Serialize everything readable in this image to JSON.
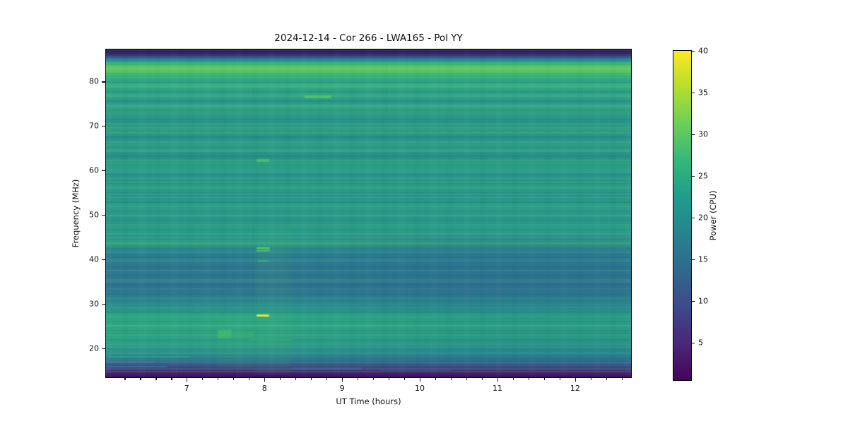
{
  "chart_data": {
    "type": "heatmap",
    "title": "2024-12-14 - Cor 266 - LWA165 - Pol YY",
    "xlabel": "UT Time (hours)",
    "ylabel": "Frequency (MHz)",
    "colorbar_label": "Power (CPU)",
    "colormap": "viridis",
    "grid": false,
    "x_range": [
      5.96,
      12.72
    ],
    "y_range": [
      13.5,
      87.2
    ],
    "color_range": [
      0.5,
      40
    ],
    "x_ticks": [
      7,
      8,
      9,
      10,
      11,
      12
    ],
    "x_minor_step": 0.2,
    "y_ticks": [
      20,
      30,
      40,
      50,
      60,
      70,
      80
    ],
    "colorbar_ticks": [
      5,
      10,
      15,
      20,
      25,
      30,
      35,
      40
    ],
    "freq_profile": {
      "description": "approximate mid-observation power (CPU) versus frequency (MHz)",
      "freqs": [
        87,
        85,
        83.5,
        82,
        80,
        78,
        76,
        74,
        72,
        70,
        68,
        66,
        64,
        62,
        60,
        58,
        56,
        54,
        52,
        50,
        48,
        46,
        45,
        44,
        42,
        40,
        38,
        36,
        34,
        32,
        30,
        28,
        27,
        26,
        24,
        22,
        20,
        18,
        17,
        16,
        15,
        14
      ],
      "power": [
        3,
        12,
        25,
        32,
        28,
        26,
        26,
        25,
        26,
        25,
        26,
        25,
        26,
        27,
        25,
        24,
        24,
        25,
        24,
        25,
        26,
        27,
        26,
        21,
        19,
        18,
        18,
        17,
        17,
        18,
        19,
        21,
        25,
        25,
        26,
        25,
        24,
        21,
        17,
        12,
        7,
        3
      ]
    },
    "time_structure_notes": [
      "28-45 MHz band darkens toward later times (~15-17 CPU after 10 UT)",
      "17-27 MHz band greener/brighter before ~9 UT",
      "dark band edges above ~85 MHz and below ~15 MHz",
      "bright green RFI band near 81-83 MHz for all times"
    ],
    "features": [
      {
        "name": "burst-27MHz-yellow",
        "t": [
          7.9,
          8.06
        ],
        "f": [
          27.1,
          27.6
        ],
        "power": 40,
        "color": "#f2e431",
        "opacity": 1,
        "blur": 0.4
      },
      {
        "name": "burst-42MHz-upper",
        "t": [
          7.9,
          8.07
        ],
        "f": [
          42.4,
          42.8
        ],
        "power": 31,
        "color": "#55c667",
        "opacity": 1,
        "blur": 0.3
      },
      {
        "name": "burst-42MHz-lower",
        "t": [
          7.9,
          8.07
        ],
        "f": [
          41.8,
          42.2
        ],
        "power": 29,
        "color": "#46bb71",
        "opacity": 0.9,
        "blur": 0.3
      },
      {
        "name": "burst-40MHz-faint",
        "t": [
          7.92,
          8.05
        ],
        "f": [
          39.4,
          39.8
        ],
        "power": 25,
        "color": "#37aa7e",
        "opacity": 0.75,
        "blur": 0.3
      },
      {
        "name": "burst-62MHz",
        "t": [
          7.9,
          8.06
        ],
        "f": [
          62.0,
          62.6
        ],
        "power": 29,
        "color": "#4ec36a",
        "opacity": 0.85,
        "blur": 0.4
      },
      {
        "name": "line-76MHz",
        "t": [
          8.52,
          8.86
        ],
        "f": [
          76.3,
          76.8
        ],
        "power": 29,
        "color": "#55c765",
        "opacity": 0.8,
        "blur": 0.4
      },
      {
        "name": "blob-23MHz-bright",
        "t": [
          7.4,
          7.58
        ],
        "f": [
          22.4,
          24.1
        ],
        "power": 30,
        "color": "#3eb86d",
        "opacity": 0.95,
        "blur": 1
      },
      {
        "name": "blob-23MHz-dim",
        "t": [
          7.58,
          7.86
        ],
        "f": [
          22.5,
          23.6
        ],
        "power": 27,
        "color": "#35ad78",
        "opacity": 0.7,
        "blur": 1
      },
      {
        "name": "band-22MHz",
        "t": [
          7.82,
          8.36
        ],
        "f": [
          21.7,
          22.3
        ],
        "power": 26,
        "color": "#33a97c",
        "opacity": 0.6,
        "blur": 0.6
      },
      {
        "name": "band-26MHz-faint",
        "t": [
          7.9,
          8.18
        ],
        "f": [
          25.6,
          26.1
        ],
        "power": 26,
        "color": "#31a67e",
        "opacity": 0.55,
        "blur": 0.5
      },
      {
        "name": "column-enhance-8h",
        "t": [
          7.88,
          8.34
        ],
        "f": [
          14.5,
          47.0
        ],
        "power": 24,
        "color": "#63cf78",
        "opacity": 0.07,
        "blur": 2
      },
      {
        "name": "column-enhance-7.6h",
        "t": [
          7.4,
          7.88
        ],
        "f": [
          15.5,
          27.5
        ],
        "power": 24,
        "color": "#63cf78",
        "opacity": 0.06,
        "blur": 2
      },
      {
        "name": "line-18MHz-left",
        "t": [
          5.96,
          7.05
        ],
        "f": [
          17.9,
          18.2
        ],
        "power": 19,
        "color": "#2f9b8c",
        "opacity": 0.9,
        "blur": 0.3
      },
      {
        "name": "line-17MHz-left",
        "t": [
          5.96,
          6.6
        ],
        "f": [
          16.8,
          17.1
        ],
        "power": 15,
        "color": "#41799f",
        "opacity": 0.8,
        "blur": 0.3
      },
      {
        "name": "line-16MHz-left",
        "t": [
          5.96,
          6.75
        ],
        "f": [
          15.7,
          16.0
        ],
        "power": 13,
        "color": "#3f6f9b",
        "opacity": 0.7,
        "blur": 0.3
      },
      {
        "name": "line-15.5MHz-mid",
        "t": [
          8.35,
          9.25
        ],
        "f": [
          15.3,
          15.7
        ],
        "power": 11,
        "color": "#3f6f9b",
        "opacity": 0.5,
        "blur": 0.4
      },
      {
        "name": "line-15MHz-mid2",
        "t": [
          9.5,
          10.4
        ],
        "f": [
          15.0,
          15.3
        ],
        "power": 10,
        "color": "#3f639b",
        "opacity": 0.4,
        "blur": 0.4
      }
    ]
  }
}
